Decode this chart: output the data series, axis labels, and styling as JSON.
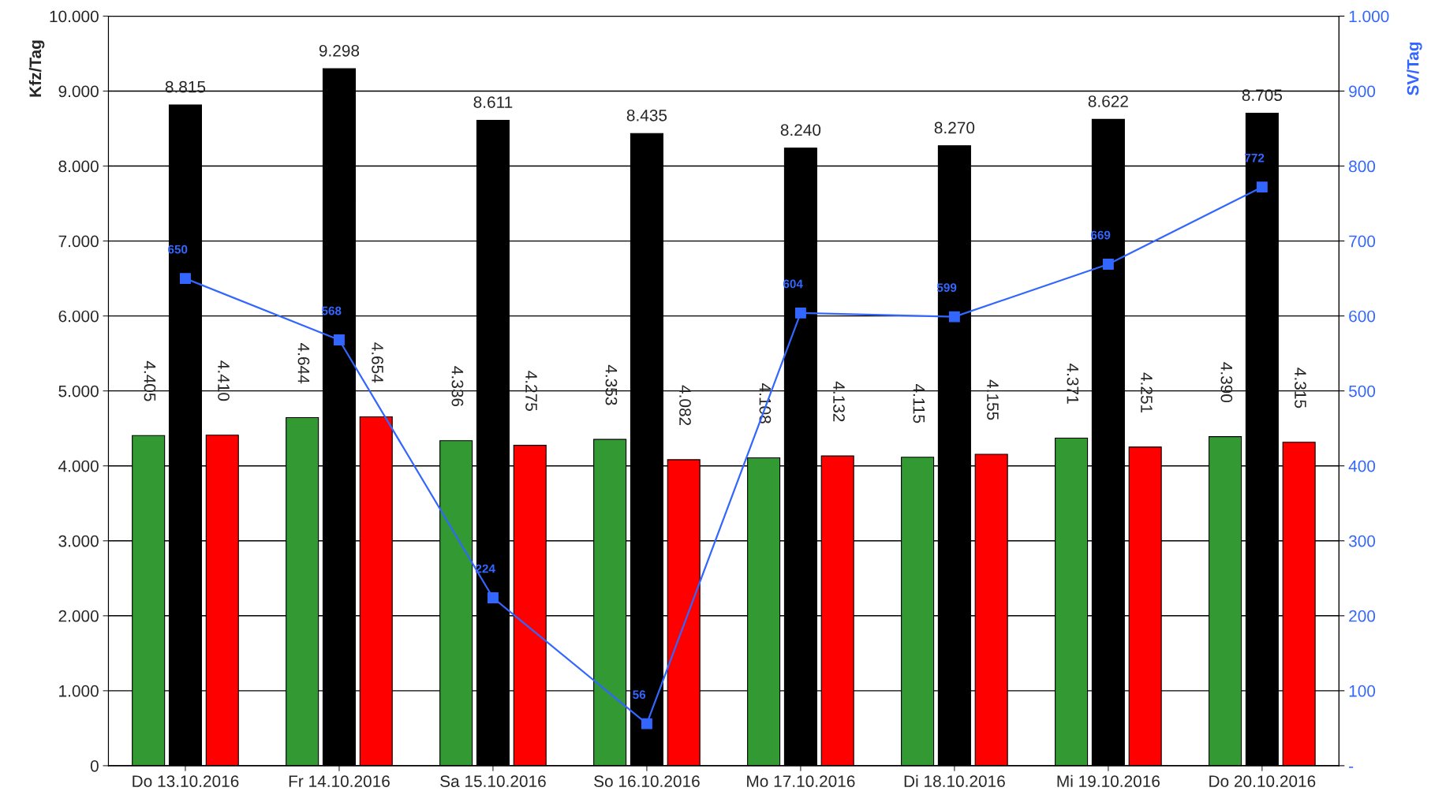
{
  "chart_data": {
    "type": "bar",
    "ylabel": "Kfz/Tag",
    "y2label": "SV/Tag",
    "categories": [
      "Do 13.10.2016",
      "Fr 14.10.2016",
      "Sa 15.10.2016",
      "So 16.10.2016",
      "Mo 17.10.2016",
      "Di 18.10.2016",
      "Mi 19.10.2016",
      "Do 20.10.2016"
    ],
    "series": [
      {
        "color": "#339933",
        "values": [
          4405,
          4644,
          4336,
          4353,
          4108,
          4115,
          4371,
          4390
        ],
        "value_labels": [
          "4.405",
          "4.644",
          "4.336",
          "4.353",
          "4.108",
          "4.115",
          "4.371",
          "4.390"
        ]
      },
      {
        "color": "#000000",
        "values": [
          8815,
          9298,
          8611,
          8435,
          8240,
          8270,
          8622,
          8705
        ],
        "value_labels": [
          "8.815",
          "9.298",
          "8.611",
          "8.435",
          "8.240",
          "8.270",
          "8.622",
          "8.705"
        ]
      },
      {
        "color": "#ff0000",
        "values": [
          4410,
          4654,
          4275,
          4082,
          4132,
          4155,
          4251,
          4315
        ],
        "value_labels": [
          "4.410",
          "4.654",
          "4.275",
          "4.082",
          "4.132",
          "4.155",
          "4.251",
          "4.315"
        ]
      },
      {
        "type": "line",
        "axis": "y2",
        "color": "#3366ff",
        "marker": "square",
        "values": [
          650,
          568,
          224,
          56,
          604,
          599,
          669,
          772
        ],
        "value_labels": [
          "650",
          "568",
          "224",
          "56",
          "604",
          "599",
          "669",
          "772"
        ]
      }
    ],
    "ylim": [
      0,
      10000
    ],
    "yticks": [
      0,
      {
        "value": 1000,
        "label": "1.000"
      },
      {
        "value": 2000,
        "label": "2.000"
      },
      {
        "value": 3000,
        "label": "3.000"
      },
      {
        "value": 4000,
        "label": "4.000"
      },
      {
        "value": 5000,
        "label": "5.000"
      },
      {
        "value": 6000,
        "label": "6.000"
      },
      {
        "value": 7000,
        "label": "7.000"
      },
      {
        "value": 8000,
        "label": "8.000"
      },
      {
        "value": 9000,
        "label": "9.000"
      },
      {
        "value": 10000,
        "label": "10.000"
      }
    ],
    "y2lim": [
      0,
      1000
    ],
    "y2ticks": [
      {
        "value": 0,
        "label": "-"
      },
      100,
      200,
      300,
      400,
      500,
      600,
      700,
      800,
      900,
      {
        "value": 1000,
        "label": "1.000"
      }
    ],
    "grid": "y"
  }
}
